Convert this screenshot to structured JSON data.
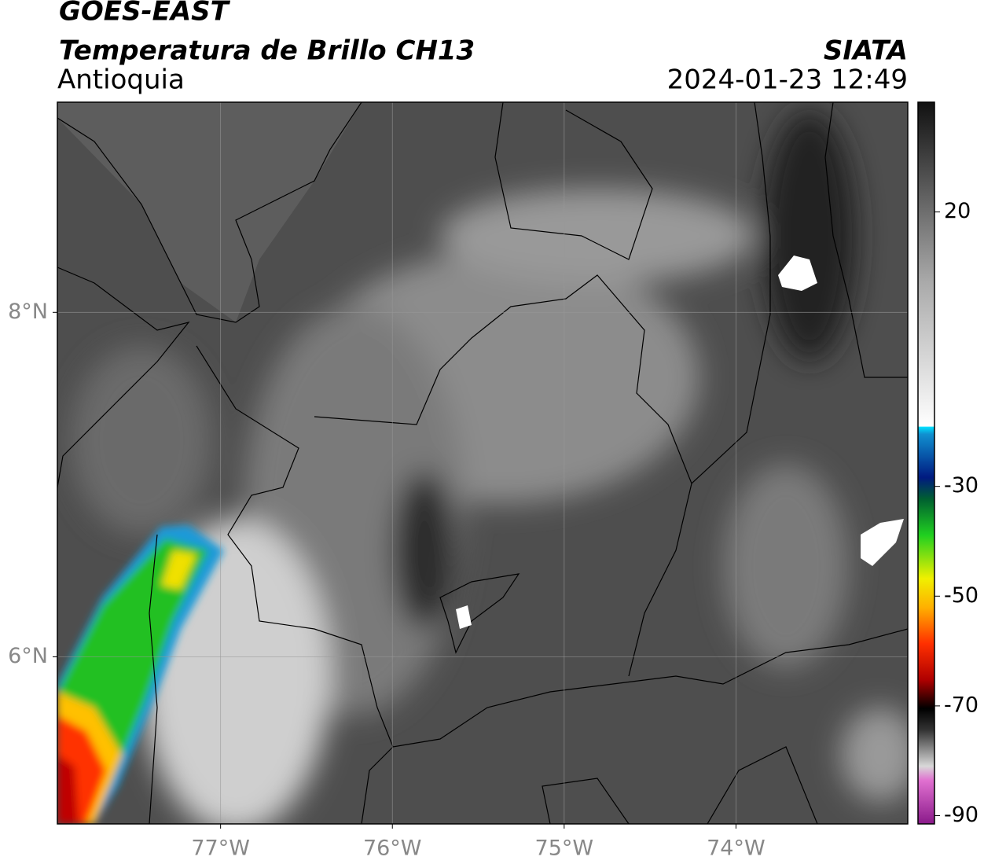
{
  "header": {
    "title": "GOES-EAST",
    "subtitle": "Temperatura de Brillo CH13",
    "region": "Antioquia",
    "agency": "SIATA",
    "datetime": "2024-01-23 12:49"
  },
  "map": {
    "xlim": [
      -77.95,
      -73.0
    ],
    "ylim": [
      5.03,
      9.22
    ],
    "xticks": [
      {
        "value": -77,
        "label": "77°W"
      },
      {
        "value": -76,
        "label": "76°W"
      },
      {
        "value": -75,
        "label": "75°W"
      },
      {
        "value": -74,
        "label": "74°W"
      }
    ],
    "yticks": [
      {
        "value": 8,
        "label": "8°N"
      },
      {
        "value": 6,
        "label": "6°N"
      }
    ],
    "grid": true
  },
  "colorbar": {
    "lim": [
      -91.5,
      40
    ],
    "ticks": [
      20,
      -30,
      -50,
      -70,
      -90
    ]
  }
}
